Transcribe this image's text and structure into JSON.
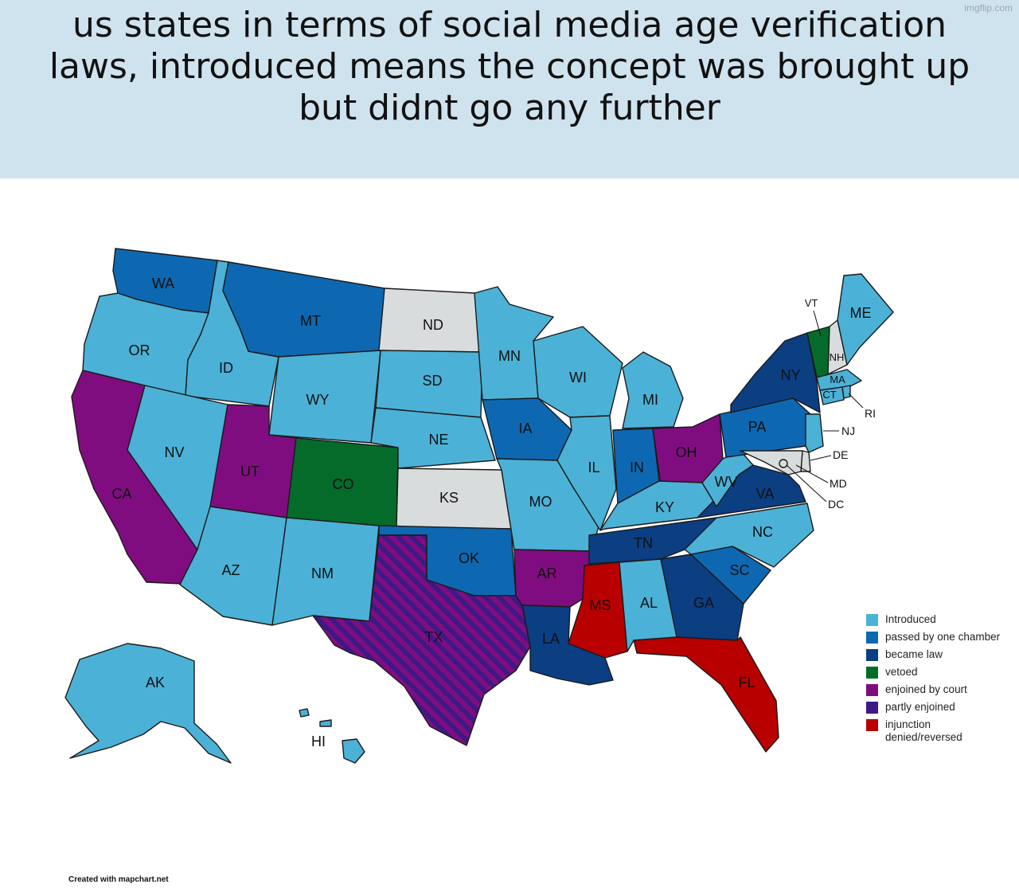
{
  "caption": "us states in terms of social media age verification laws, introduced means the concept was brought up but didnt go any further",
  "watermark": "imgflip.com",
  "credit": "Created with mapchart.net",
  "colors": {
    "introduced": "#4cb1d6",
    "passed": "#0e68b1",
    "law": "#0c3e82",
    "vetoed": "#056b2a",
    "enjoined": "#800d80",
    "partly": "#3e1985",
    "denied": "#b80000",
    "none": "#d9dcdc"
  },
  "legend": [
    {
      "key": "introduced",
      "label": "Introduced"
    },
    {
      "key": "passed",
      "label": "passed by one chamber"
    },
    {
      "key": "law",
      "label": "became law"
    },
    {
      "key": "vetoed",
      "label": "vetoed"
    },
    {
      "key": "enjoined",
      "label": "enjoined by court"
    },
    {
      "key": "partly",
      "label": "partly enjoined"
    },
    {
      "key": "denied",
      "label": "injunction denied/reversed"
    }
  ],
  "states": {
    "WA": "passed",
    "OR": "introduced",
    "CA": "enjoined",
    "ID": "introduced",
    "NV": "introduced",
    "MT": "passed",
    "WY": "introduced",
    "UT": "enjoined",
    "AZ": "introduced",
    "CO": "vetoed",
    "NM": "introduced",
    "ND": "none",
    "SD": "introduced",
    "NE": "introduced",
    "KS": "none",
    "OK": "passed",
    "TX": "partly",
    "MN": "introduced",
    "IA": "passed",
    "MO": "introduced",
    "AR": "enjoined",
    "LA": "law",
    "WI": "introduced",
    "IL": "introduced",
    "MI": "introduced",
    "IN": "passed",
    "OH": "enjoined",
    "KY": "introduced",
    "TN": "law",
    "MS": "denied",
    "AL": "introduced",
    "GA": "law",
    "FL": "denied",
    "SC": "passed",
    "NC": "introduced",
    "VA": "law",
    "WV": "introduced",
    "PA": "passed",
    "NY": "law",
    "VT": "vetoed",
    "NH": "none",
    "ME": "introduced",
    "MA": "introduced",
    "CT": "introduced",
    "RI": "introduced",
    "NJ": "introduced",
    "DE": "none",
    "MD": "none",
    "DC": "none",
    "AK": "introduced",
    "HI": "introduced"
  }
}
